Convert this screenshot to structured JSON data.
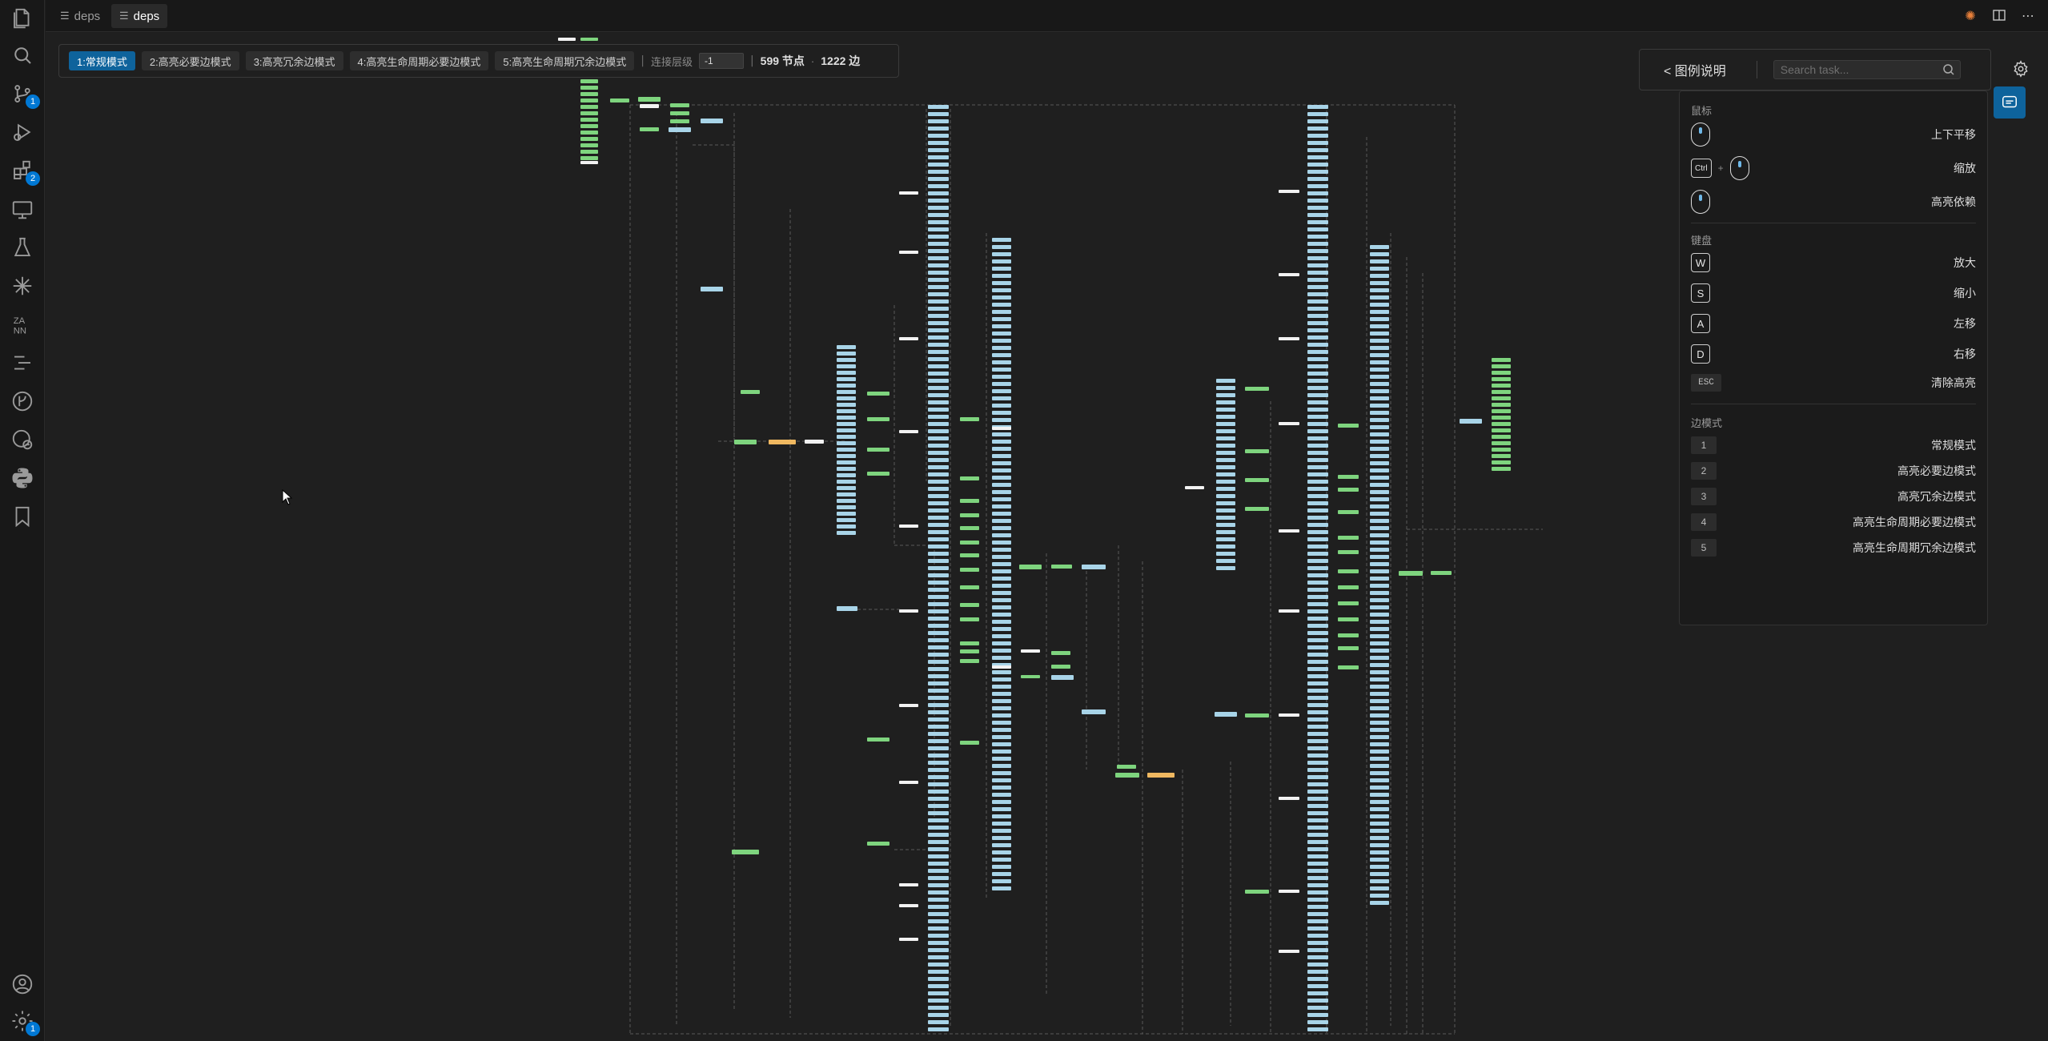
{
  "tabs": [
    {
      "label": "deps",
      "active": false
    },
    {
      "label": "deps",
      "active": true
    }
  ],
  "activity_bar": {
    "items": [
      {
        "icon": "explorer-icon"
      },
      {
        "icon": "search-icon"
      },
      {
        "icon": "source-control-icon",
        "badge": "1"
      },
      {
        "icon": "run-debug-icon"
      },
      {
        "icon": "extensions-icon",
        "badge": "2"
      },
      {
        "icon": "remote-explorer-icon"
      },
      {
        "icon": "testing-icon"
      },
      {
        "icon": "sparkle-icon"
      },
      {
        "icon": "translate-icon"
      },
      {
        "icon": "outline-icon"
      },
      {
        "icon": "git-graph-icon"
      },
      {
        "icon": "docker-icon"
      },
      {
        "icon": "python-icon"
      },
      {
        "icon": "bookmark-icon"
      }
    ],
    "bottom": [
      {
        "icon": "account-icon"
      },
      {
        "icon": "manage-gear-icon",
        "badge": "1"
      }
    ]
  },
  "toolbar": {
    "modes": [
      "1:常规模式",
      "2:高亮必要边模式",
      "3:高亮冗余边模式",
      "4:高亮生命周期必要边模式",
      "5:高亮生命周期冗余边模式"
    ],
    "active_mode": 0,
    "level_label": "连接层级",
    "level_value": "-1",
    "node_count": "599 节点",
    "dot": "·",
    "edge_count": "1222 边"
  },
  "legend": {
    "title": "< 图例说明",
    "search_placeholder": "Search task...",
    "mouse_section": "鼠标",
    "mouse_rows": [
      {
        "desc": "上下平移"
      },
      {
        "key": "Ctrl",
        "plus": "+",
        "desc": "缩放"
      },
      {
        "desc": "高亮依赖"
      }
    ],
    "keyboard_section": "键盘",
    "key_rows": [
      {
        "key": "W",
        "desc": "放大"
      },
      {
        "key": "S",
        "desc": "缩小"
      },
      {
        "key": "A",
        "desc": "左移"
      },
      {
        "key": "D",
        "desc": "右移"
      },
      {
        "key": "ESC",
        "desc": "清除高亮"
      }
    ],
    "edge_section": "边模式",
    "edge_rows": [
      {
        "key": "1",
        "desc": "常规模式"
      },
      {
        "key": "2",
        "desc": "高亮必要边模式"
      },
      {
        "key": "3",
        "desc": "高亮冗余边模式"
      },
      {
        "key": "4",
        "desc": "高亮生命周期必要边模式"
      },
      {
        "key": "5",
        "desc": "高亮生命周期冗余边模式"
      }
    ]
  },
  "colors": {
    "node_blue": "#a8d4e8",
    "node_green": "#7ed47e",
    "node_white": "#f2f2f2",
    "node_orange": "#f0b860",
    "edge": "#5a5a5a",
    "accent": "#0e639c"
  }
}
